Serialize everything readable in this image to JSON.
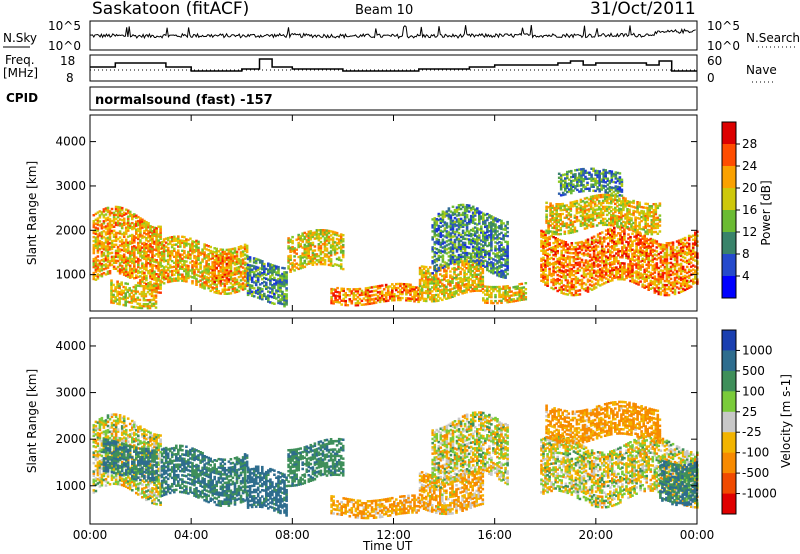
{
  "header": {
    "station": "Saskatoon (fitACF)",
    "beam": "Beam 10",
    "date": "31/Oct/2011"
  },
  "noise_panel": {
    "left_label": "N.Sky",
    "right_label": "N.Search",
    "left_ticks": [
      "10^5",
      "10^0"
    ],
    "right_ticks": [
      "10^5",
      "10^0"
    ]
  },
  "freq_panel": {
    "left_label_line1": "Freq.",
    "left_label_line2": "[MHz]",
    "right_label": "Nave",
    "left_ticks": [
      "18",
      "8"
    ],
    "right_ticks": [
      "60",
      "0"
    ]
  },
  "cpid": {
    "label": "CPID",
    "value": "normalsound (fast) -157"
  },
  "x_axis": {
    "label": "Time UT",
    "ticks": [
      "00:00",
      "04:00",
      "08:00",
      "12:00",
      "16:00",
      "20:00",
      "00:00"
    ]
  },
  "power_panel": {
    "ylabel": "Slant Range [km]",
    "yticks": [
      "4000",
      "3000",
      "2000",
      "1000"
    ],
    "colorbar_label": "Power [dB]",
    "colorbar_ticks": [
      "28",
      "24",
      "20",
      "16",
      "12",
      "8",
      "4"
    ]
  },
  "velocity_panel": {
    "ylabel": "Slant Range [km]",
    "yticks": [
      "4000",
      "3000",
      "2000",
      "1000"
    ],
    "colorbar_label": "Velocity [m s-1]",
    "colorbar_ticks": [
      "1000",
      "500",
      "100",
      "25",
      "-25",
      "-100",
      "-500",
      "-1000"
    ]
  },
  "chart_data": [
    {
      "type": "line",
      "panel": "sky-noise",
      "yscale": "log",
      "ylim": [
        1,
        100000
      ],
      "x": [
        0,
        2,
        4,
        6,
        8,
        10,
        12,
        14,
        16,
        18,
        20,
        22,
        24
      ],
      "series": [
        {
          "name": "N.Sky",
          "values": [
            300,
            250,
            300,
            280,
            320,
            260,
            240,
            250,
            300,
            330,
            310,
            400,
            3000
          ]
        }
      ]
    },
    {
      "type": "line",
      "panel": "frequency",
      "ylim": [
        8,
        18
      ],
      "x": [
        0,
        1,
        2,
        3,
        4,
        5,
        6,
        6.7,
        7.2,
        8,
        10,
        12,
        13,
        14,
        15,
        16,
        17.5,
        18.5,
        19,
        19.5,
        20,
        21,
        22,
        22.5,
        23,
        24
      ],
      "series": [
        {
          "name": "Freq.",
          "values": [
            14,
            16,
            16,
            14,
            12,
            12,
            13,
            18,
            14,
            13,
            12,
            12,
            13,
            13,
            14,
            15,
            15,
            16,
            17,
            15,
            16,
            16,
            15,
            17,
            12,
            13
          ]
        }
      ]
    },
    {
      "type": "heatmap",
      "panel": "power",
      "x_range_hours": [
        0,
        24
      ],
      "y_range_km": [
        180,
        4600
      ],
      "value_range": [
        0,
        30
      ],
      "unit": "dB",
      "bands": [
        {
          "t0": 0.1,
          "t1": 2.8,
          "r0": 800,
          "r1": 2300,
          "mean": 22
        },
        {
          "t0": 0.8,
          "t1": 2.6,
          "r0": 300,
          "r1": 800,
          "mean": 20
        },
        {
          "t0": 2.8,
          "t1": 6.2,
          "r0": 700,
          "r1": 1700,
          "mean": 21
        },
        {
          "t0": 4.8,
          "t1": 5.6,
          "r0": 900,
          "r1": 1500,
          "mean": 24
        },
        {
          "t0": 6.2,
          "t1": 7.8,
          "r0": 400,
          "r1": 1300,
          "mean": 12
        },
        {
          "t0": 7.8,
          "t1": 10,
          "r0": 1100,
          "r1": 1900,
          "mean": 20
        },
        {
          "t0": 9.5,
          "t1": 13,
          "r0": 350,
          "r1": 750,
          "mean": 24
        },
        {
          "t0": 13,
          "t1": 15.5,
          "r0": 500,
          "r1": 1300,
          "mean": 20
        },
        {
          "t0": 13.5,
          "t1": 16.5,
          "r0": 1100,
          "r1": 2400,
          "mean": 12
        },
        {
          "t0": 15.5,
          "t1": 17.2,
          "r0": 400,
          "r1": 800,
          "mean": 20
        },
        {
          "t0": 17.8,
          "t1": 24,
          "r0": 700,
          "r1": 1900,
          "mean": 24
        },
        {
          "t0": 18,
          "t1": 22.5,
          "r0": 2000,
          "r1": 2700,
          "mean": 20
        },
        {
          "t0": 18.5,
          "t1": 21,
          "r0": 2800,
          "r1": 3300,
          "mean": 12
        }
      ]
    },
    {
      "type": "heatmap",
      "panel": "velocity",
      "x_range_hours": [
        0,
        24
      ],
      "y_range_km": [
        180,
        4600
      ],
      "value_range": [
        -1000,
        1000
      ],
      "unit": "m s-1",
      "bands": [
        {
          "t0": 0.1,
          "t1": 2.8,
          "r0": 800,
          "r1": 2300,
          "mean": 0
        },
        {
          "t0": 0.5,
          "t1": 2.6,
          "r0": 1200,
          "r1": 1900,
          "mean": 300
        },
        {
          "t0": 2.8,
          "t1": 6.2,
          "r0": 700,
          "r1": 1700,
          "mean": 300
        },
        {
          "t0": 6.2,
          "t1": 7.8,
          "r0": 400,
          "r1": 1300,
          "mean": 400
        },
        {
          "t0": 7.8,
          "t1": 10,
          "r0": 1100,
          "r1": 1900,
          "mean": 250
        },
        {
          "t0": 9.5,
          "t1": 13,
          "r0": 350,
          "r1": 750,
          "mean": -120
        },
        {
          "t0": 13,
          "t1": 15.5,
          "r0": 500,
          "r1": 1300,
          "mean": -100
        },
        {
          "t0": 13.5,
          "t1": 16.5,
          "r0": 1100,
          "r1": 2400,
          "mean": 0
        },
        {
          "t0": 17.8,
          "t1": 24,
          "r0": 700,
          "r1": 1900,
          "mean": 0
        },
        {
          "t0": 22.5,
          "t1": 24,
          "r0": 700,
          "r1": 1600,
          "mean": 300
        },
        {
          "t0": 18,
          "t1": 22.5,
          "r0": 2000,
          "r1": 2700,
          "mean": -150
        }
      ]
    }
  ]
}
